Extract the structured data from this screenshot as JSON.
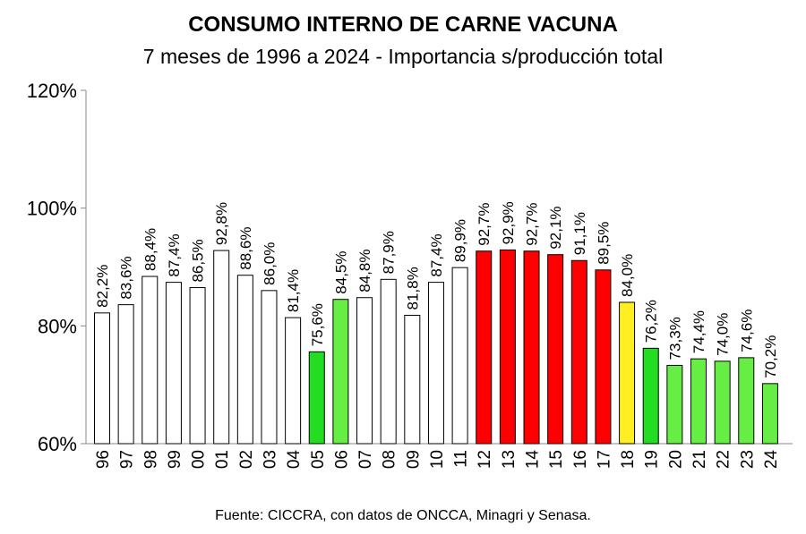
{
  "chart_data": {
    "type": "bar",
    "title": "CONSUMO INTERNO DE CARNE VACUNA",
    "subtitle": "7 meses de 1996 a 2024 - Importancia s/producción total",
    "source": "Fuente: CICCRA, con datos de ONCCA, Minagri y Senasa.",
    "categories": [
      "96",
      "97",
      "98",
      "99",
      "00",
      "01",
      "02",
      "03",
      "04",
      "05",
      "06",
      "07",
      "08",
      "09",
      "10",
      "11",
      "12",
      "13",
      "14",
      "15",
      "16",
      "17",
      "18",
      "19",
      "20",
      "21",
      "22",
      "23",
      "24"
    ],
    "values": [
      82.2,
      83.6,
      88.4,
      87.4,
      86.5,
      92.8,
      88.6,
      86.0,
      81.4,
      75.6,
      84.5,
      84.8,
      87.9,
      81.8,
      87.4,
      89.9,
      92.7,
      92.9,
      92.7,
      92.1,
      91.1,
      89.5,
      84.0,
      76.2,
      73.3,
      74.4,
      74.0,
      74.6,
      70.2
    ],
    "value_labels": [
      "82,2%",
      "83,6%",
      "88,4%",
      "87,4%",
      "86,5%",
      "92,8%",
      "88,6%",
      "86,0%",
      "81,4%",
      "75,6%",
      "84,5%",
      "84,8%",
      "87,9%",
      "81,8%",
      "87,4%",
      "89,9%",
      "92,7%",
      "92,9%",
      "92,7%",
      "92,1%",
      "91,1%",
      "89,5%",
      "84,0%",
      "76,2%",
      "73,3%",
      "74,4%",
      "74,0%",
      "74,6%",
      "70,2%"
    ],
    "bar_colors": [
      "#ffffff",
      "#ffffff",
      "#ffffff",
      "#ffffff",
      "#ffffff",
      "#ffffff",
      "#ffffff",
      "#ffffff",
      "#ffffff",
      "#22dd22",
      "#66ee44",
      "#ffffff",
      "#ffffff",
      "#ffffff",
      "#ffffff",
      "#ffffff",
      "#ff0000",
      "#ff0000",
      "#ff0000",
      "#ff0000",
      "#ff0000",
      "#ff0000",
      "#ffee22",
      "#22dd22",
      "#66ee44",
      "#66ee44",
      "#66ee44",
      "#66ee44",
      "#66ee44"
    ],
    "ylim": [
      60,
      120
    ],
    "yticks": [
      60,
      80,
      100,
      120
    ],
    "ytick_labels": [
      "60%",
      "80%",
      "100%",
      "120%"
    ],
    "grid": false,
    "legend": "none"
  }
}
